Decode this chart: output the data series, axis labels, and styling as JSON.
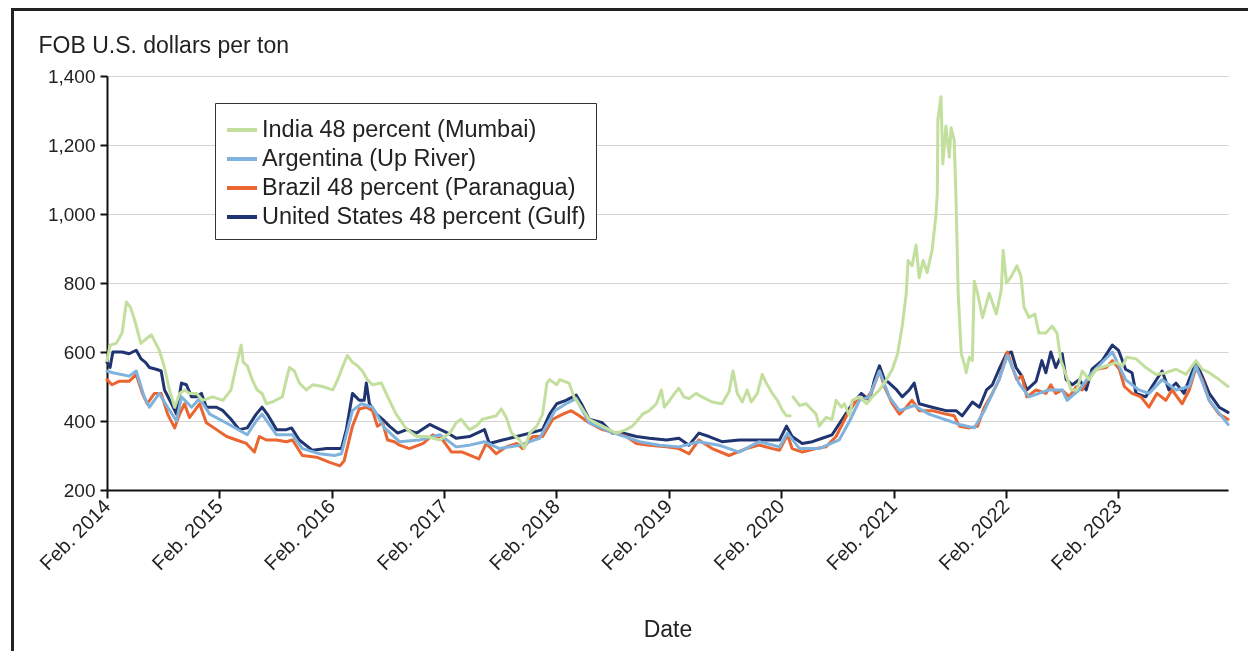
{
  "chart_data": {
    "type": "line",
    "xlabel": "Date",
    "ylabel": "FOB U.S. dollars per ton",
    "xlim": [
      "2014-02-01",
      "2024-01-24"
    ],
    "xticks": [
      {
        "value": "2014-02-01",
        "label": "Feb. 2014"
      },
      {
        "value": "2015-02-01",
        "label": "Feb. 2015"
      },
      {
        "value": "2016-02-01",
        "label": "Feb. 2016"
      },
      {
        "value": "2017-02-01",
        "label": "Feb. 2017"
      },
      {
        "value": "2018-02-01",
        "label": "Feb. 2018"
      },
      {
        "value": "2019-02-01",
        "label": "Feb. 2019"
      },
      {
        "value": "2020-02-01",
        "label": "Feb. 2020"
      },
      {
        "value": "2021-02-01",
        "label": "Feb. 2021"
      },
      {
        "value": "2022-02-01",
        "label": "Feb. 2022"
      },
      {
        "value": "2023-02-01",
        "label": "Feb. 2023"
      }
    ],
    "ylim": [
      200,
      1400
    ],
    "yticks": [
      200,
      400,
      600,
      800,
      {
        "value": 1000,
        "label": "1,000"
      },
      {
        "value": 1200,
        "label": "1,200"
      },
      {
        "value": 1400,
        "label": "1,400"
      }
    ],
    "grid": "y",
    "legend": "top left",
    "series": [
      {
        "name": "India 48 percent (Mumbai)",
        "color": "#c3df9e",
        "x": [
          "2014-02-01",
          "2014-02-11",
          "2014-03-03",
          "2014-03-22",
          "2014-04-05",
          "2014-04-18",
          "2014-05-01",
          "2014-05-22",
          "2014-06-25",
          "2014-07-21",
          "2014-08-07",
          "2014-08-23",
          "2014-09-09",
          "2014-09-25",
          "2014-10-11",
          "2014-10-27",
          "2014-11-19",
          "2014-12-08",
          "2015-01-11",
          "2015-02-13",
          "2015-03-11",
          "2015-03-27",
          "2015-04-13",
          "2015-04-20",
          "2015-05-03",
          "2015-05-19",
          "2015-06-04",
          "2015-06-20",
          "2015-07-04",
          "2015-07-23",
          "2015-08-25",
          "2015-09-07",
          "2015-09-17",
          "2015-10-03",
          "2015-10-19",
          "2015-11-11",
          "2015-12-01",
          "2016-01-03",
          "2016-02-05",
          "2016-02-21",
          "2016-03-07",
          "2016-03-23",
          "2016-04-09",
          "2016-04-25",
          "2016-05-11",
          "2016-05-27",
          "2016-06-13",
          "2016-07-12",
          "2016-08-07",
          "2016-08-29",
          "2016-09-25",
          "2016-10-11",
          "2016-11-04",
          "2016-12-06",
          "2017-01-18",
          "2017-02-20",
          "2017-03-12",
          "2017-03-28",
          "2017-04-24",
          "2017-05-16",
          "2017-06-05",
          "2017-06-28",
          "2017-07-20",
          "2017-08-06",
          "2017-08-22",
          "2017-09-08",
          "2017-10-04",
          "2017-10-20",
          "2017-11-06",
          "2017-11-29",
          "2017-12-18",
          "2018-01-01",
          "2018-01-10",
          "2018-02-02",
          "2018-02-12",
          "2018-03-14",
          "2018-03-30",
          "2018-04-23",
          "2018-05-18",
          "2018-06-30",
          "2018-08-14",
          "2018-09-16",
          "2018-10-05",
          "2018-10-21",
          "2018-11-08",
          "2018-11-30",
          "2018-12-23",
          "2019-01-08",
          "2019-01-18",
          "2019-02-04",
          "2019-02-20",
          "2019-03-06",
          "2019-03-22",
          "2019-04-08",
          "2019-05-01",
          "2019-05-20",
          "2019-06-22",
          "2019-07-24",
          "2019-08-16",
          "2019-08-29",
          "2019-09-12",
          "2019-09-28",
          "2019-10-14",
          "2019-10-27",
          "2019-11-16",
          "2019-12-02",
          "2019-12-15",
          "2020-01-04",
          "2020-01-20",
          "2020-02-06",
          "2020-02-19",
          "2020-03-02",
          "2020-03-06",
          "2020-03-11",
          "2020-04-01",
          "2020-04-23",
          "2020-05-09",
          "2020-05-25",
          "2020-06-04",
          "2020-06-26",
          "2020-07-16",
          "2020-07-29",
          "2020-08-15",
          "2020-08-25",
          "2020-09-11",
          "2020-09-20",
          "2020-10-13",
          "2020-11-05",
          "2020-11-24",
          "2020-12-17",
          "2021-01-09",
          "2021-01-28",
          "2021-02-14",
          "2021-03-01",
          "2021-03-14",
          "2021-03-20",
          "2021-04-02",
          "2021-04-15",
          "2021-04-25",
          "2021-05-08",
          "2021-05-21",
          "2021-06-06",
          "2021-06-19",
          "2021-06-23",
          "2021-06-25",
          "2021-07-05",
          "2021-07-11",
          "2021-07-21",
          "2021-08-01",
          "2021-08-07",
          "2021-08-17",
          "2021-08-23",
          "2021-08-30",
          "2021-09-09",
          "2021-09-19",
          "2021-09-25",
          "2021-10-05",
          "2021-10-15",
          "2021-10-21",
          "2021-11-01",
          "2021-11-17",
          "2021-12-09",
          "2022-01-01",
          "2022-01-17",
          "2022-01-23",
          "2022-02-03",
          "2022-02-19",
          "2022-03-09",
          "2022-03-22",
          "2022-04-01",
          "2022-04-17",
          "2022-05-06",
          "2022-05-19",
          "2022-06-11",
          "2022-07-01",
          "2022-07-17",
          "2022-07-30",
          "2022-08-09",
          "2022-09-01",
          "2022-09-20",
          "2022-10-07",
          "2022-10-30",
          "2022-11-22",
          "2022-12-24",
          "2023-01-26",
          "2023-02-15",
          "2023-03-01",
          "2023-03-31",
          "2023-05-02",
          "2023-06-04",
          "2023-07-06",
          "2023-08-08",
          "2023-09-10",
          "2023-10-12",
          "2023-11-01",
          "2023-11-24",
          "2023-12-26",
          "2024-01-24"
        ],
        "values": [
          575,
          620,
          625,
          655,
          745,
          730,
          695,
          625,
          650,
          605,
          555,
          490,
          440,
          480,
          490,
          480,
          480,
          460,
          470,
          460,
          490,
          555,
          620,
          570,
          560,
          520,
          490,
          480,
          450,
          455,
          470,
          520,
          555,
          545,
          510,
          490,
          505,
          500,
          490,
          520,
          555,
          590,
          570,
          560,
          545,
          520,
          505,
          510,
          460,
          420,
          385,
          370,
          355,
          355,
          345,
          365,
          395,
          405,
          375,
          385,
          405,
          410,
          415,
          435,
          410,
          365,
          345,
          320,
          365,
          385,
          420,
          510,
          520,
          505,
          520,
          510,
          470,
          440,
          405,
          385,
          365,
          375,
          385,
          400,
          420,
          430,
          450,
          490,
          440,
          460,
          480,
          495,
          470,
          465,
          480,
          470,
          455,
          450,
          485,
          545,
          480,
          455,
          490,
          455,
          480,
          535,
          510,
          480,
          460,
          430,
          415,
          415,
          null,
          470,
          445,
          450,
          435,
          420,
          385,
          410,
          405,
          460,
          440,
          450,
          415,
          460,
          470,
          450,
          470,
          490,
          520,
          550,
          595,
          675,
          770,
          865,
          850,
          910,
          815,
          865,
          830,
          895,
          1000,
          1060,
          1275,
          1340,
          1145,
          1255,
          1165,
          1250,
          1215,
          1040,
          770,
          595,
          565,
          540,
          585,
          575,
          805,
          770,
          700,
          770,
          710,
          780,
          895,
          800,
          820,
          850,
          820,
          730,
          700,
          710,
          655,
          655,
          675,
          655,
          575,
          550,
          490,
          490,
          545,
          520,
          550,
          560,
          570,
          560,
          585,
          580,
          555,
          535,
          540,
          550,
          535,
          575,
          550,
          540,
          520,
          500
        ]
      },
      {
        "name": "Argentina (Up River)",
        "color": "#7fb2dc",
        "x": [
          "2014-02-01",
          "2014-02-20",
          "2014-04-14",
          "2014-05-07",
          "2014-06-02",
          "2014-06-19",
          "2014-07-21",
          "2014-08-17",
          "2014-09-15",
          "2014-10-01",
          "2014-11-03",
          "2014-11-29",
          "2015-01-01",
          "2015-03-05",
          "2015-05-03",
          "2015-06-01",
          "2015-06-20",
          "2015-08-06",
          "2015-09-27",
          "2015-10-29",
          "2015-12-24",
          "2016-02-11",
          "2016-03-04",
          "2016-04-09",
          "2016-05-08",
          "2016-06-13",
          "2016-07-22",
          "2016-09-09",
          "2016-11-13",
          "2017-01-18",
          "2017-03-12",
          "2017-04-24",
          "2017-06-12",
          "2017-07-31",
          "2017-10-04",
          "2017-12-08",
          "2018-01-27",
          "2018-03-04",
          "2018-04-06",
          "2018-05-18",
          "2018-07-23",
          "2018-10-29",
          "2019-01-02",
          "2019-03-06",
          "2019-05-10",
          "2019-07-14",
          "2019-09-18",
          "2019-11-22",
          "2020-01-27",
          "2020-02-22",
          "2020-04-01",
          "2020-06-04",
          "2020-08-08",
          "2020-09-11",
          "2020-10-13",
          "2020-11-14",
          "2020-12-17",
          "2021-01-18",
          "2021-02-20",
          "2021-04-09",
          "2021-05-27",
          "2021-08-01",
          "2021-09-03",
          "2021-10-21",
          "2021-11-23",
          "2022-01-10",
          "2022-02-06",
          "2022-03-15",
          "2022-04-17",
          "2022-06-21",
          "2022-08-03",
          "2022-08-19",
          "2022-09-27",
          "2022-11-08",
          "2023-01-13",
          "2023-02-25",
          "2023-04-09",
          "2023-05-12",
          "2023-06-24",
          "2023-08-08",
          "2023-09-20",
          "2023-10-12",
          "2023-11-24",
          "2024-01-24"
        ],
        "values": [
          545,
          540,
          530,
          545,
          470,
          440,
          480,
          440,
          400,
          470,
          440,
          465,
          420,
          390,
          360,
          400,
          420,
          360,
          360,
          320,
          305,
          300,
          305,
          430,
          450,
          440,
          380,
          340,
          345,
          360,
          325,
          330,
          340,
          320,
          330,
          350,
          430,
          450,
          465,
          395,
          370,
          340,
          330,
          325,
          340,
          330,
          310,
          340,
          325,
          365,
          320,
          320,
          345,
          400,
          460,
          470,
          545,
          470,
          430,
          445,
          420,
          400,
          390,
          380,
          430,
          520,
          590,
          510,
          470,
          490,
          490,
          460,
          490,
          540,
          600,
          520,
          490,
          480,
          520,
          490,
          500,
          560,
          460,
          390
        ]
      },
      {
        "name": "Brazil 48 percent (Paranagua)",
        "color": "#ea6530",
        "x": [
          "2014-02-01",
          "2014-02-17",
          "2014-03-12",
          "2014-04-14",
          "2014-05-07",
          "2014-05-27",
          "2014-06-12",
          "2014-07-05",
          "2014-07-27",
          "2014-08-17",
          "2014-09-09",
          "2014-09-25",
          "2014-10-11",
          "2014-10-27",
          "2014-11-13",
          "2014-11-29",
          "2014-12-21",
          "2015-01-23",
          "2015-02-25",
          "2015-03-29",
          "2015-04-30",
          "2015-05-26",
          "2015-06-11",
          "2015-07-04",
          "2015-08-06",
          "2015-09-07",
          "2015-09-27",
          "2015-10-29",
          "2015-12-14",
          "2016-01-26",
          "2016-02-28",
          "2016-03-13",
          "2016-04-09",
          "2016-05-01",
          "2016-05-24",
          "2016-06-13",
          "2016-06-29",
          "2016-07-16",
          "2016-08-01",
          "2016-08-23",
          "2016-09-09",
          "2016-10-11",
          "2016-11-25",
          "2016-12-26",
          "2017-01-27",
          "2017-02-25",
          "2017-04-01",
          "2017-05-25",
          "2017-06-18",
          "2017-07-20",
          "2017-08-22",
          "2017-09-25",
          "2017-10-14",
          "2017-11-16",
          "2017-12-18",
          "2018-01-20",
          "2018-02-22",
          "2018-03-21",
          "2018-04-16",
          "2018-05-18",
          "2018-06-30",
          "2018-08-14",
          "2018-09-16",
          "2018-10-19",
          "2018-11-30",
          "2019-01-25",
          "2019-03-06",
          "2019-04-08",
          "2019-05-10",
          "2019-06-22",
          "2019-08-16",
          "2019-10-11",
          "2019-11-22",
          "2020-01-04",
          "2020-01-27",
          "2020-02-22",
          "2020-03-08",
          "2020-04-10",
          "2020-05-25",
          "2020-06-26",
          "2020-07-29",
          "2020-09-01",
          "2020-10-03",
          "2020-11-05",
          "2020-11-24",
          "2020-12-17",
          "2021-01-02",
          "2021-01-28",
          "2021-02-20",
          "2021-03-14",
          "2021-04-02",
          "2021-04-25",
          "2021-06-06",
          "2021-07-21",
          "2021-08-17",
          "2021-09-03",
          "2021-10-05",
          "2021-11-01",
          "2021-11-23",
          "2021-12-19",
          "2022-01-10",
          "2022-02-06",
          "2022-02-22",
          "2022-03-09",
          "2022-03-25",
          "2022-04-10",
          "2022-05-10",
          "2022-06-11",
          "2022-06-27",
          "2022-07-13",
          "2022-08-03",
          "2022-08-26",
          "2022-09-18",
          "2022-10-07",
          "2022-10-30",
          "2022-11-22",
          "2022-12-24",
          "2023-01-13",
          "2023-02-05",
          "2023-02-21",
          "2023-03-18",
          "2023-04-16",
          "2023-05-12",
          "2023-06-07",
          "2023-07-06",
          "2023-07-26",
          "2023-08-28",
          "2023-09-20",
          "2023-10-12",
          "2023-11-01",
          "2023-11-24",
          "2023-12-26",
          "2024-01-24"
        ],
        "values": [
          520,
          505,
          515,
          515,
          535,
          480,
          450,
          480,
          480,
          420,
          380,
          420,
          450,
          410,
          430,
          450,
          395,
          375,
          355,
          345,
          335,
          310,
          355,
          345,
          345,
          340,
          345,
          300,
          295,
          280,
          270,
          285,
          385,
          435,
          440,
          430,
          385,
          395,
          345,
          340,
          330,
          320,
          335,
          360,
          345,
          310,
          310,
          290,
          335,
          305,
          325,
          335,
          320,
          355,
          355,
          405,
          420,
          430,
          415,
          395,
          375,
          365,
          355,
          335,
          330,
          325,
          320,
          305,
          345,
          320,
          300,
          320,
          330,
          320,
          315,
          360,
          320,
          310,
          320,
          325,
          355,
          415,
          460,
          465,
          490,
          545,
          500,
          450,
          420,
          440,
          460,
          430,
          430,
          420,
          415,
          385,
          380,
          385,
          440,
          480,
          520,
          600,
          555,
          520,
          530,
          470,
          490,
          480,
          505,
          480,
          490,
          470,
          500,
          490,
          530,
          550,
          555,
          575,
          550,
          500,
          480,
          470,
          440,
          480,
          460,
          490,
          450,
          490,
          555,
          520,
          460,
          420,
          405
        ]
      },
      {
        "name": "United States 48 percent (Gulf)",
        "color": "#1f3470",
        "x": [
          "2014-02-01",
          "2014-02-11",
          "2014-02-20",
          "2014-03-22",
          "2014-04-14",
          "2014-05-07",
          "2014-05-23",
          "2014-06-06",
          "2014-06-19",
          "2014-07-11",
          "2014-07-27",
          "2014-08-07",
          "2014-08-30",
          "2014-09-15",
          "2014-10-01",
          "2014-10-17",
          "2014-11-03",
          "2014-11-19",
          "2014-12-05",
          "2014-12-21",
          "2015-01-23",
          "2015-02-13",
          "2015-03-11",
          "2015-04-07",
          "2015-05-03",
          "2015-06-01",
          "2015-06-20",
          "2015-07-07",
          "2015-08-06",
          "2015-09-07",
          "2015-09-24",
          "2015-10-19",
          "2015-12-01",
          "2016-01-16",
          "2016-03-04",
          "2016-03-20",
          "2016-04-09",
          "2016-05-01",
          "2016-05-17",
          "2016-05-24",
          "2016-06-03",
          "2016-06-26",
          "2016-07-16",
          "2016-08-07",
          "2016-09-03",
          "2016-10-02",
          "2016-11-04",
          "2016-12-16",
          "2017-01-08",
          "2017-02-13",
          "2017-03-12",
          "2017-04-24",
          "2017-06-12",
          "2017-06-28",
          "2017-08-10",
          "2017-09-25",
          "2017-11-06",
          "2017-12-18",
          "2018-01-10",
          "2018-02-02",
          "2018-03-04",
          "2018-04-06",
          "2018-04-23",
          "2018-05-18",
          "2018-06-30",
          "2018-08-02",
          "2018-09-04",
          "2018-10-19",
          "2018-11-30",
          "2019-01-25",
          "2019-03-06",
          "2019-04-08",
          "2019-05-10",
          "2019-06-12",
          "2019-07-24",
          "2019-09-18",
          "2019-11-13",
          "2019-12-25",
          "2020-01-27",
          "2020-02-19",
          "2020-03-08",
          "2020-04-10",
          "2020-05-13",
          "2020-06-14",
          "2020-07-16",
          "2020-08-18",
          "2020-09-20",
          "2020-10-19",
          "2020-11-14",
          "2020-12-01",
          "2020-12-17",
          "2021-01-02",
          "2021-01-18",
          "2021-02-11",
          "2021-03-01",
          "2021-03-24",
          "2021-04-09",
          "2021-04-25",
          "2021-06-06",
          "2021-07-21",
          "2021-08-23",
          "2021-09-12",
          "2021-10-15",
          "2021-11-07",
          "2021-11-30",
          "2021-12-19",
          "2022-01-10",
          "2022-02-03",
          "2022-02-19",
          "2022-03-06",
          "2022-03-25",
          "2022-04-10",
          "2022-05-10",
          "2022-05-29",
          "2022-06-11",
          "2022-06-27",
          "2022-07-13",
          "2022-08-03",
          "2022-08-16",
          "2022-09-05",
          "2022-09-27",
          "2022-10-20",
          "2022-11-08",
          "2022-12-11",
          "2023-01-13",
          "2023-02-02",
          "2023-02-25",
          "2023-03-18",
          "2023-03-31",
          "2023-05-02",
          "2023-05-22",
          "2023-06-24",
          "2023-07-16",
          "2023-08-08",
          "2023-09-03",
          "2023-09-20",
          "2023-10-12",
          "2023-11-01",
          "2023-11-24",
          "2023-12-26",
          "2024-01-24"
        ],
        "values": [
          570,
          555,
          600,
          600,
          595,
          605,
          580,
          570,
          555,
          550,
          545,
          490,
          450,
          420,
          510,
          505,
          470,
          470,
          480,
          440,
          440,
          430,
          405,
          375,
          380,
          420,
          440,
          420,
          375,
          375,
          380,
          345,
          315,
          320,
          320,
          375,
          480,
          460,
          460,
          510,
          450,
          420,
          405,
          385,
          365,
          375,
          365,
          390,
          380,
          365,
          350,
          355,
          375,
          335,
          345,
          355,
          365,
          375,
          420,
          450,
          460,
          475,
          450,
          405,
          395,
          365,
          365,
          355,
          350,
          345,
          350,
          330,
          365,
          355,
          340,
          345,
          345,
          345,
          345,
          385,
          355,
          335,
          340,
          350,
          360,
          405,
          450,
          480,
          460,
          520,
          560,
          520,
          510,
          490,
          470,
          490,
          510,
          450,
          440,
          430,
          430,
          415,
          455,
          440,
          490,
          505,
          550,
          595,
          600,
          555,
          530,
          490,
          515,
          575,
          540,
          600,
          555,
          595,
          520,
          505,
          520,
          490,
          550,
          575,
          620,
          605,
          550,
          540,
          480,
          470,
          500,
          545,
          490,
          510,
          480,
          520,
          570,
          530,
          480,
          440,
          425
        ]
      }
    ]
  }
}
